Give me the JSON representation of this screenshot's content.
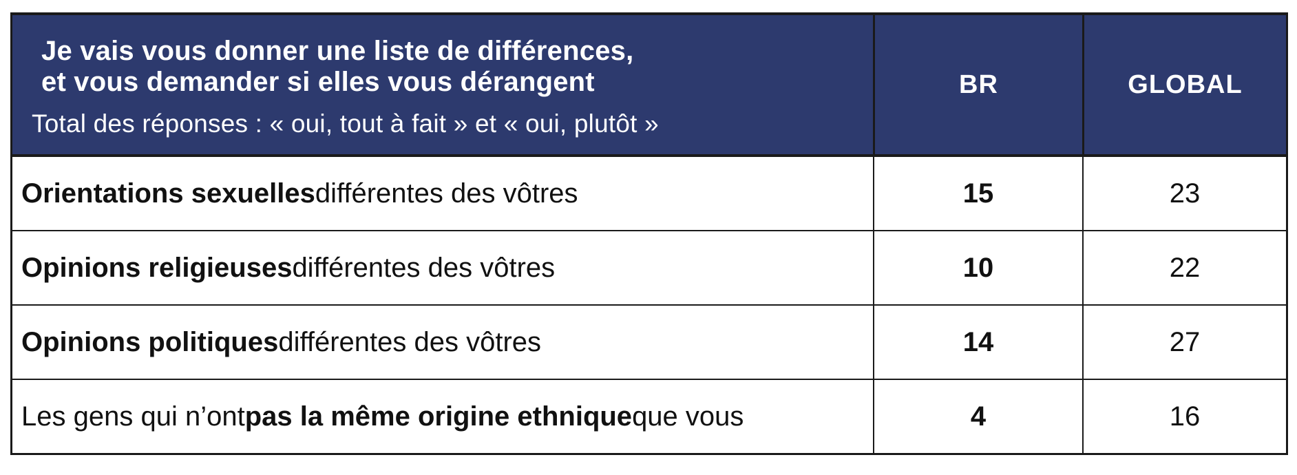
{
  "colors": {
    "header_bg": "#2d3a6e",
    "header_text": "#ffffff",
    "border": "#1a1a1a",
    "body_text": "#111111"
  },
  "header": {
    "title_line1": "Je vais vous donner une liste de différences,",
    "title_line2": "et vous demander si elles vous dérangent",
    "subtitle": "Total des réponses : « oui, tout à fait » et « oui, plutôt »",
    "columns": {
      "br": "BR",
      "global": "GLOBAL"
    }
  },
  "rows": [
    {
      "prefix": "",
      "bold": "Orientations sexuelles",
      "suffix": " différentes des vôtres",
      "br": "15",
      "global": "23"
    },
    {
      "prefix": "",
      "bold": "Opinions religieuses",
      "suffix": " différentes des vôtres",
      "br": "10",
      "global": "22"
    },
    {
      "prefix": "",
      "bold": "Opinions politiques",
      "suffix": " différentes des vôtres",
      "br": "14",
      "global": "27"
    },
    {
      "prefix": "Les gens qui n’ont ",
      "bold": "pas la même origine ethnique",
      "suffix": " que vous",
      "br": "4",
      "global": "16"
    }
  ],
  "chart_data": {
    "type": "table",
    "title": "Je vais vous donner une liste de différences, et vous demander si elles vous dérangent",
    "subtitle": "Total des réponses : « oui, tout à fait » et « oui, plutôt »",
    "categories": [
      "Orientations sexuelles différentes des vôtres",
      "Opinions religieuses différentes des vôtres",
      "Opinions politiques différentes des vôtres",
      "Les gens qui n’ont pas la même origine ethnique que vous"
    ],
    "series": [
      {
        "name": "BR",
        "values": [
          15,
          10,
          14,
          4
        ]
      },
      {
        "name": "GLOBAL",
        "values": [
          23,
          22,
          27,
          16
        ]
      }
    ],
    "legend_position": "top",
    "grid": true
  }
}
